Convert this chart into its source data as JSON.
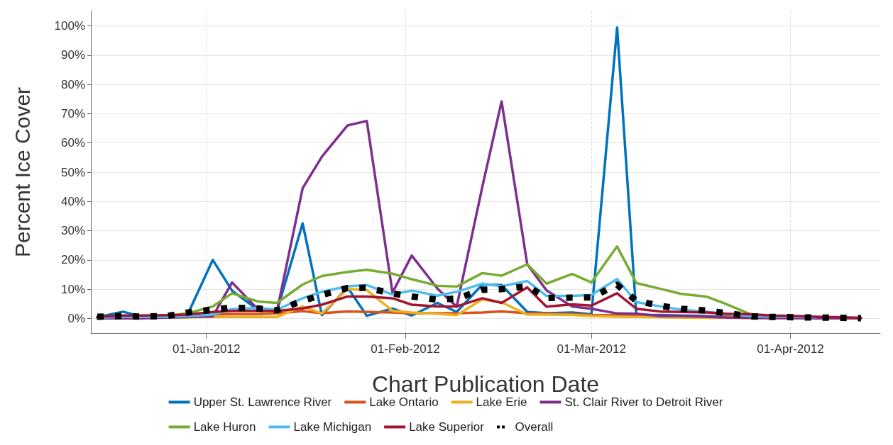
{
  "chart_data": {
    "type": "line",
    "xlabel": "Chart Publication Date",
    "ylabel": "Percent Ice Cover",
    "x": [
      "2011-12-15",
      "2011-12-19",
      "2011-12-22",
      "2011-12-26",
      "2011-12-29",
      "2012-01-02",
      "2012-01-05",
      "2012-01-09",
      "2012-01-12",
      "2012-01-16",
      "2012-01-19",
      "2012-01-23",
      "2012-01-26",
      "2012-01-30",
      "2012-02-02",
      "2012-02-06",
      "2012-02-09",
      "2012-02-13",
      "2012-02-16",
      "2012-02-20",
      "2012-02-23",
      "2012-02-27",
      "2012-03-01",
      "2012-03-05",
      "2012-03-08",
      "2012-03-12",
      "2012-03-15",
      "2012-03-19",
      "2012-03-22",
      "2012-03-26",
      "2012-03-29",
      "2012-04-02",
      "2012-04-05",
      "2012-04-09",
      "2012-04-12"
    ],
    "series": [
      {
        "name": "Upper St. Lawrence River",
        "color": "#0072bd",
        "values": [
          0.4,
          2.3,
          0.6,
          0.8,
          1.0,
          20.0,
          9.5,
          3.0,
          2.5,
          32.5,
          1.1,
          10.6,
          0.9,
          3.4,
          1.0,
          5.3,
          2.2,
          11.6,
          11.4,
          2.2,
          1.8,
          2.0,
          1.4,
          99.5,
          1.1,
          1.2,
          1.0,
          0.8,
          0.6,
          0.4,
          0.3,
          0.2,
          0.1,
          null,
          null
        ]
      },
      {
        "name": "Lake Ontario",
        "color": "#d95319",
        "values": [
          null,
          null,
          null,
          0.3,
          0.4,
          1.3,
          1.5,
          1.5,
          1.7,
          2.5,
          1.8,
          2.4,
          2.2,
          2.0,
          1.8,
          1.8,
          1.8,
          2.0,
          2.4,
          1.8,
          1.6,
          1.5,
          1.2,
          1.1,
          1.0,
          0.8,
          0.7,
          0.6,
          0.5,
          0.4,
          0.3,
          null,
          null,
          null,
          null
        ]
      },
      {
        "name": "Lake Erie",
        "color": "#edb120",
        "values": [
          null,
          null,
          null,
          0.4,
          0.4,
          0.5,
          0.5,
          0.5,
          0.5,
          4.1,
          1.7,
          10.1,
          9.7,
          2.6,
          2.0,
          1.6,
          1.1,
          6.5,
          5.5,
          1.3,
          1.3,
          1.2,
          0.8,
          0.6,
          0.5,
          0.4,
          0.3,
          0.2,
          0.2,
          0.1,
          0.1,
          null,
          null,
          null,
          null
        ]
      },
      {
        "name": "St. Clair River to Detroit River",
        "color": "#7e2f8e",
        "values": [
          0.0,
          0.0,
          0.0,
          0.3,
          0.5,
          0.7,
          12.3,
          3.2,
          2.5,
          44.5,
          55.3,
          66.0,
          67.5,
          8.8,
          21.5,
          10.2,
          4.0,
          45.0,
          74.2,
          18.5,
          9.6,
          4.1,
          3.3,
          1.7,
          1.6,
          0.8,
          0.8,
          0.6,
          0.3,
          0.2,
          0.1,
          0.1,
          0.0,
          0.0,
          0.0
        ]
      },
      {
        "name": "Lake Huron",
        "color": "#77ac30",
        "values": [
          null,
          null,
          null,
          1.0,
          1.7,
          4.1,
          8.6,
          5.8,
          5.3,
          11.6,
          14.5,
          15.9,
          16.6,
          15.3,
          13.4,
          11.2,
          10.9,
          15.5,
          14.6,
          18.5,
          11.9,
          15.2,
          12.3,
          24.6,
          12.1,
          10.0,
          8.4,
          7.4,
          4.9,
          1.2,
          0.8,
          null,
          null,
          null,
          null
        ]
      },
      {
        "name": "Lake Michigan",
        "color": "#4dbeee",
        "values": [
          0.3,
          0.5,
          0.5,
          0.6,
          0.8,
          1.3,
          3.2,
          3.6,
          3.0,
          6.9,
          9.1,
          11.0,
          11.4,
          8.2,
          9.5,
          7.8,
          9.1,
          11.9,
          11.0,
          12.8,
          7.7,
          7.7,
          8.0,
          13.5,
          5.6,
          4.0,
          3.0,
          2.3,
          1.5,
          0.8,
          0.6,
          0.5,
          0.4,
          null,
          null
        ]
      },
      {
        "name": "Lake Superior",
        "color": "#a2142f",
        "values": [
          0.5,
          1.0,
          1.0,
          1.1,
          1.3,
          2.2,
          2.6,
          2.6,
          2.6,
          3.4,
          4.7,
          7.5,
          7.5,
          6.9,
          4.7,
          4.1,
          4.1,
          6.9,
          5.3,
          10.6,
          4.0,
          4.8,
          4.4,
          8.6,
          3.3,
          2.3,
          2.2,
          2.0,
          1.6,
          1.4,
          1.0,
          0.8,
          0.6,
          0.4,
          0.2
        ]
      },
      {
        "name": "Overall",
        "color": "#000000",
        "line_style": "dotted",
        "values": [
          0.6,
          0.8,
          0.6,
          0.9,
          2.0,
          3.0,
          3.7,
          3.4,
          2.8,
          6.0,
          8.0,
          10.4,
          10.5,
          8.5,
          7.5,
          6.4,
          6.8,
          9.8,
          10.0,
          11.0,
          7.0,
          7.1,
          7.2,
          11.5,
          6.0,
          4.2,
          3.3,
          2.7,
          1.8,
          0.7,
          0.5,
          0.4,
          0.3,
          0.2,
          0.1
        ]
      }
    ],
    "xlim": [
      "2011-12-14",
      "2012-04-15"
    ],
    "xticks": [
      {
        "value": "2012-01-01",
        "label": "01-Jan-2012"
      },
      {
        "value": "2012-02-01",
        "label": "01-Feb-2012"
      },
      {
        "value": "2012-03-01",
        "label": "01-Mar-2012"
      },
      {
        "value": "2012-04-01",
        "label": "01-Apr-2012"
      }
    ],
    "ylim": [
      -5,
      105
    ],
    "yticks": [
      {
        "value": 0,
        "label": "0%"
      },
      {
        "value": 10,
        "label": "10%"
      },
      {
        "value": 20,
        "label": "20%"
      },
      {
        "value": 30,
        "label": "30%"
      },
      {
        "value": 40,
        "label": "40%"
      },
      {
        "value": 50,
        "label": "50%"
      },
      {
        "value": 60,
        "label": "60%"
      },
      {
        "value": 70,
        "label": "70%"
      },
      {
        "value": 80,
        "label": "80%"
      },
      {
        "value": 90,
        "label": "90%"
      },
      {
        "value": 100,
        "label": "100%"
      }
    ],
    "grid": true,
    "legend": "bottom",
    "line_style": "solid",
    "marker": "none"
  }
}
